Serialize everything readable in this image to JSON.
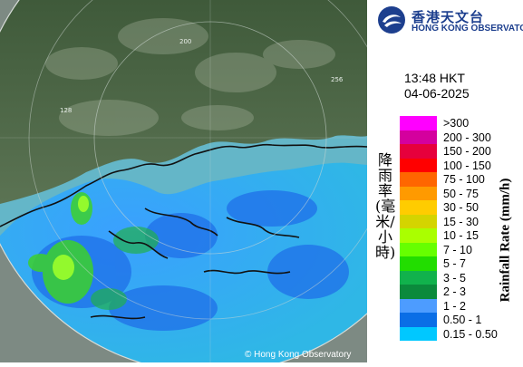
{
  "header": {
    "logo_zh": "香港天文台",
    "logo_en": "HONG KONG OBSERVATORY"
  },
  "timestamp": {
    "time": "13:48 HKT",
    "date": "04-06-2025"
  },
  "legend": {
    "title_zh": "降雨率(毫米/小時)",
    "title_en": "Rainfall Rate (mm/h)",
    "items": [
      {
        "label": ">300",
        "color": "#ff00ff"
      },
      {
        "label": "200 - 300",
        "color": "#d4009e"
      },
      {
        "label": "150 - 200",
        "color": "#e6003c"
      },
      {
        "label": "100 - 150",
        "color": "#ff0000"
      },
      {
        "label": "75 - 100",
        "color": "#ff6600"
      },
      {
        "label": "50 - 75",
        "color": "#ff9a00"
      },
      {
        "label": "30 - 50",
        "color": "#ffcc00"
      },
      {
        "label": "15 - 30",
        "color": "#d4d400"
      },
      {
        "label": "10 - 15",
        "color": "#aaff00"
      },
      {
        "label": "7 - 10",
        "color": "#66ff00"
      },
      {
        "label": "5 - 7",
        "color": "#22dd00"
      },
      {
        "label": "3 - 5",
        "color": "#11b24c"
      },
      {
        "label": "2 - 3",
        "color": "#0b8a3c"
      },
      {
        "label": "1 - 2",
        "color": "#4d9cff"
      },
      {
        "label": "0.50 - 1",
        "color": "#0a6ee6"
      },
      {
        "label": "0.15 - 0.50",
        "color": "#00c8ff"
      }
    ]
  },
  "map": {
    "range_labels": [
      "200",
      "256",
      "128"
    ],
    "copyright": "© Hong Kong Observatory"
  }
}
